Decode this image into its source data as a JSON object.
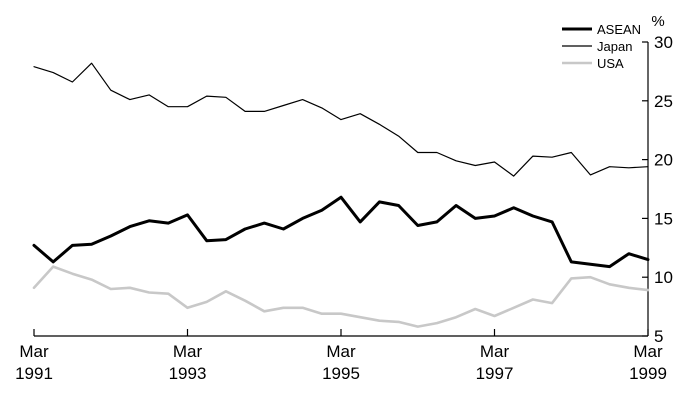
{
  "chart_data": {
    "type": "line",
    "title": "",
    "xlabel": "",
    "ylabel": "%",
    "ylim": [
      5,
      30
    ],
    "yticks": [
      "5",
      "10",
      "15",
      "20",
      "25",
      "30"
    ],
    "xlim": [
      1991.0,
      1999.0
    ],
    "xticks": [
      {
        "month": "Mar",
        "year": "1991",
        "x": 1991.0
      },
      {
        "month": "Mar",
        "year": "1993",
        "x": 1993.0
      },
      {
        "month": "Mar",
        "year": "1995",
        "x": 1995.0
      },
      {
        "month": "Mar",
        "year": "1997",
        "x": 1997.0
      },
      {
        "month": "Mar",
        "year": "1999",
        "x": 1999.0
      }
    ],
    "x": [
      1991.0,
      1991.25,
      1991.5,
      1991.75,
      1992.0,
      1992.25,
      1992.5,
      1992.75,
      1993.0,
      1993.25,
      1993.5,
      1993.75,
      1994.0,
      1994.25,
      1994.5,
      1994.75,
      1995.0,
      1995.25,
      1995.5,
      1995.75,
      1996.0,
      1996.25,
      1996.5,
      1996.75,
      1997.0,
      1997.25,
      1997.5,
      1997.75,
      1998.0,
      1998.25,
      1998.5,
      1998.75,
      1999.0
    ],
    "grid": false,
    "legend_position": "top-right",
    "series": [
      {
        "name": "ASEAN",
        "color": "#000000",
        "values": [
          12.7,
          11.3,
          12.7,
          12.8,
          13.5,
          14.3,
          14.8,
          14.6,
          15.3,
          13.1,
          13.2,
          14.1,
          14.6,
          14.1,
          15.0,
          15.7,
          16.8,
          14.7,
          16.4,
          16.1,
          14.4,
          14.7,
          16.1,
          15.0,
          15.2,
          15.9,
          15.2,
          14.7,
          11.3,
          11.1,
          10.9,
          12.0,
          11.5
        ]
      },
      {
        "name": "Japan",
        "color": "#000000",
        "values": [
          27.9,
          27.4,
          26.6,
          28.2,
          25.9,
          25.1,
          25.5,
          24.5,
          24.5,
          25.4,
          25.3,
          24.1,
          24.1,
          24.6,
          25.1,
          24.4,
          23.4,
          23.9,
          23.0,
          22.0,
          20.6,
          20.6,
          19.9,
          19.5,
          19.8,
          18.6,
          20.3,
          20.2,
          20.6,
          18.7,
          19.4,
          19.3,
          19.4
        ]
      },
      {
        "name": "USA",
        "color": "#c8c8c8",
        "values": [
          9.1,
          10.9,
          10.3,
          9.8,
          9.0,
          9.1,
          8.7,
          8.6,
          7.4,
          7.9,
          8.8,
          8.0,
          7.1,
          7.4,
          7.4,
          6.9,
          6.9,
          6.6,
          6.3,
          6.2,
          5.8,
          6.1,
          6.6,
          7.3,
          6.7,
          7.4,
          8.1,
          7.8,
          9.9,
          10.0,
          9.4,
          9.1,
          8.9
        ]
      }
    ]
  }
}
